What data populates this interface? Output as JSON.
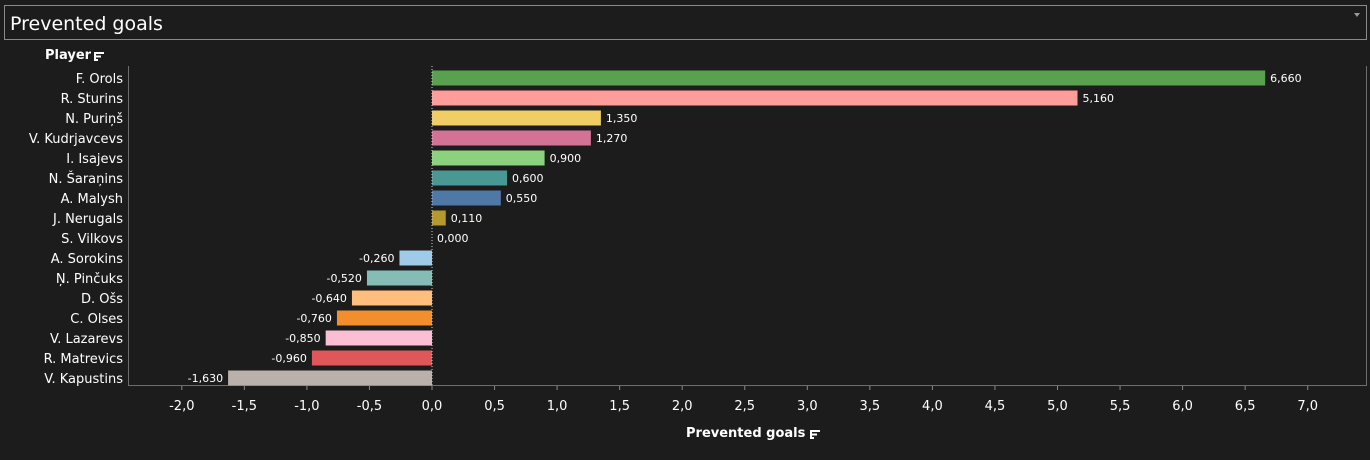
{
  "header": {
    "title": "Prevented goals"
  },
  "table": {
    "column_header": "Player",
    "sort_icon": "sort-icon"
  },
  "chart_data": {
    "type": "bar",
    "orientation": "horizontal",
    "title": "Prevented goals",
    "xlabel": "Prevented goals",
    "ylabel": "Player",
    "xlim": [
      -2.3,
      7.4
    ],
    "xticks": [
      -2.0,
      -1.5,
      -1.0,
      -0.5,
      0.0,
      0.5,
      1.0,
      1.5,
      2.0,
      2.5,
      3.0,
      3.5,
      4.0,
      4.5,
      5.0,
      5.5,
      6.0,
      6.5,
      7.0
    ],
    "xtick_labels": [
      "-2,0",
      "-1,5",
      "-1,0",
      "-0,5",
      "0,0",
      "0,5",
      "1,0",
      "1,5",
      "2,0",
      "2,5",
      "3,0",
      "3,5",
      "4,0",
      "4,5",
      "5,0",
      "5,5",
      "6,0",
      "6,5",
      "7,0"
    ],
    "categories": [
      "F. Orols",
      "R. Sturins",
      "N. Puriņš",
      "V. Kudrjavcevs",
      "I. Isajevs",
      "N. Šaraņins",
      "A. Malysh",
      "J. Nerugals",
      "S. Vilkovs",
      "A. Sorokins",
      "Ņ. Pinčuks",
      "D. Ošs",
      "C. Olses",
      "V. Lazarevs",
      "R. Matrevics",
      "V. Kapustins"
    ],
    "values": [
      6.66,
      5.16,
      1.35,
      1.27,
      0.9,
      0.6,
      0.55,
      0.11,
      0.0,
      -0.26,
      -0.52,
      -0.64,
      -0.76,
      -0.85,
      -0.96,
      -1.63
    ],
    "value_labels": [
      "6,660",
      "5,160",
      "1,350",
      "1,270",
      "0,900",
      "0,600",
      "0,550",
      "0,110",
      "0,000",
      "-0,260",
      "-0,520",
      "-0,640",
      "-0,760",
      "-0,850",
      "-0,960",
      "-1,630"
    ],
    "colors": [
      "#59a14f",
      "#ff9d9a",
      "#f1ce63",
      "#d37295",
      "#8cd17d",
      "#499894",
      "#4e79a7",
      "#b6992d",
      "#79706e",
      "#a0cbe8",
      "#86bcb6",
      "#ffbe7d",
      "#f28e2b",
      "#fabfd2",
      "#e15759",
      "#bab0ac"
    ],
    "grid": false,
    "legend": "none"
  }
}
